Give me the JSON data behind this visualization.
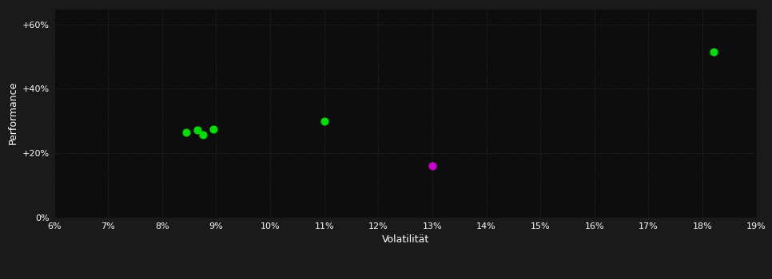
{
  "xlabel": "Volatilität",
  "ylabel": "Performance",
  "background_color": "#1a1a1a",
  "plot_bg_color": "#0d0d0d",
  "grid_color": "#333333",
  "text_color": "#ffffff",
  "xlim": [
    0.06,
    0.19
  ],
  "ylim": [
    0.0,
    0.65
  ],
  "xticks": [
    0.06,
    0.07,
    0.08,
    0.09,
    0.1,
    0.11,
    0.12,
    0.13,
    0.14,
    0.15,
    0.16,
    0.17,
    0.18,
    0.19
  ],
  "yticks": [
    0.0,
    0.2,
    0.4,
    0.6
  ],
  "ytick_labels": [
    "0%",
    "+20%",
    "+40%",
    "+60%"
  ],
  "xtick_labels": [
    "6%",
    "7%",
    "8%",
    "9%",
    "10%",
    "11%",
    "12%",
    "13%",
    "14%",
    "15%",
    "16%",
    "17%",
    "18%",
    "19%"
  ],
  "green_points": [
    [
      0.0845,
      0.265
    ],
    [
      0.0865,
      0.272
    ],
    [
      0.0875,
      0.258
    ],
    [
      0.0895,
      0.275
    ],
    [
      0.11,
      0.3
    ],
    [
      0.182,
      0.515
    ]
  ],
  "magenta_points": [
    [
      0.13,
      0.16
    ]
  ],
  "point_color_green": "#00dd00",
  "point_color_magenta": "#cc00cc",
  "marker_size": 40
}
